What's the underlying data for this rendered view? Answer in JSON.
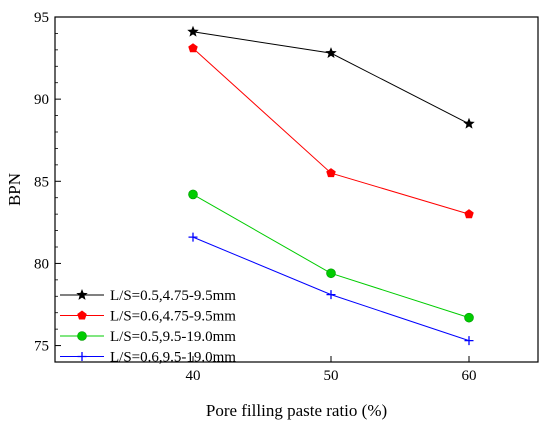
{
  "chart_data": {
    "type": "line",
    "title": "",
    "xlabel": "Pore filling paste ratio (%)",
    "ylabel": "BPN",
    "xlim": [
      30,
      65
    ],
    "ylim": [
      74,
      95
    ],
    "xticks": [
      40,
      50,
      60
    ],
    "yticks": [
      75,
      80,
      85,
      90,
      95
    ],
    "grid": false,
    "legend": "bottom-left",
    "series": [
      {
        "name": "L/S=0.5,4.75-9.5mm",
        "color": "#000000",
        "marker": "star",
        "x": [
          40,
          50,
          60
        ],
        "values": [
          94.1,
          92.8,
          88.5
        ]
      },
      {
        "name": "L/S=0.6,4.75-9.5mm",
        "color": "#ff0000",
        "marker": "pentagon",
        "x": [
          40,
          50,
          60
        ],
        "values": [
          93.1,
          85.5,
          83.0
        ]
      },
      {
        "name": "L/S=0.5,9.5-19.0mm",
        "color": "#00cc00",
        "marker": "circle",
        "x": [
          40,
          50,
          60
        ],
        "values": [
          84.2,
          79.4,
          76.7
        ]
      },
      {
        "name": "L/S=0.6,9.5-19.0mm",
        "color": "#0000ff",
        "marker": "plus",
        "x": [
          40,
          50,
          60
        ],
        "values": [
          81.6,
          78.1,
          75.3
        ]
      }
    ]
  }
}
